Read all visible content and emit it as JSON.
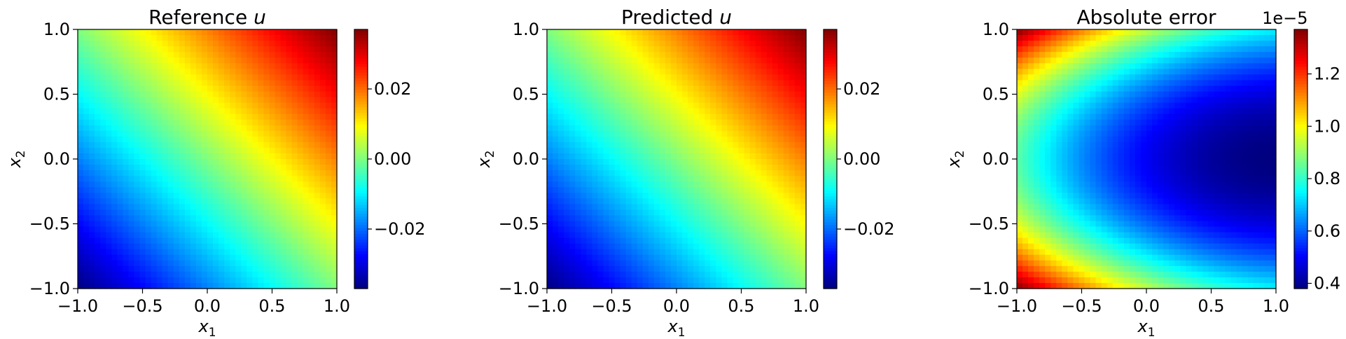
{
  "chart_data": [
    {
      "type": "heatmap",
      "title": "Reference",
      "title_var": "u",
      "xlabel": "x",
      "xlabel_sub": "1",
      "ylabel": "x",
      "ylabel_sub": "2",
      "xlim": [
        -1.0,
        1.0
      ],
      "ylim": [
        -1.0,
        1.0
      ],
      "xticks": [
        -1.0,
        -0.5,
        0.0,
        0.5,
        1.0
      ],
      "xtick_labels": [
        "−1.0",
        "−0.5",
        "0.0",
        "0.5",
        "1.0"
      ],
      "yticks": [
        -1.0,
        -0.5,
        0.0,
        0.5,
        1.0
      ],
      "ytick_labels": [
        "−1.0",
        "−0.5",
        "0.0",
        "0.5",
        "1.0"
      ],
      "colormap": "jet",
      "field": "linear",
      "corner_values": {
        "x-1_y-1": -0.037,
        "x1_y-1": 0.0,
        "x-1_y1": 0.0,
        "x1_y1": 0.037
      },
      "colorbar": {
        "range": [
          -0.037,
          0.037
        ],
        "ticks": [
          -0.02,
          0.0,
          0.02
        ],
        "tick_labels": [
          "−0.02",
          "0.00",
          "0.02"
        ],
        "offset_text": ""
      }
    },
    {
      "type": "heatmap",
      "title": "Predicted",
      "title_var": "u",
      "xlabel": "x",
      "xlabel_sub": "1",
      "ylabel": "x",
      "ylabel_sub": "2",
      "xlim": [
        -1.0,
        1.0
      ],
      "ylim": [
        -1.0,
        1.0
      ],
      "xticks": [
        -1.0,
        -0.5,
        0.0,
        0.5,
        1.0
      ],
      "xtick_labels": [
        "−1.0",
        "−0.5",
        "0.0",
        "0.5",
        "1.0"
      ],
      "yticks": [
        -1.0,
        -0.5,
        0.0,
        0.5,
        1.0
      ],
      "ytick_labels": [
        "−1.0",
        "−0.5",
        "0.0",
        "0.5",
        "1.0"
      ],
      "colormap": "jet",
      "field": "linear",
      "corner_values": {
        "x-1_y-1": -0.037,
        "x1_y-1": 0.0,
        "x-1_y1": 0.0,
        "x1_y1": 0.037
      },
      "colorbar": {
        "range": [
          -0.037,
          0.037
        ],
        "ticks": [
          -0.02,
          0.0,
          0.02
        ],
        "tick_labels": [
          "−0.02",
          "0.00",
          "0.02"
        ],
        "offset_text": ""
      }
    },
    {
      "type": "heatmap",
      "title": "Absolute error",
      "title_var": "",
      "xlabel": "x",
      "xlabel_sub": "1",
      "ylabel": "x",
      "ylabel_sub": "2",
      "xlim": [
        -1.0,
        1.0
      ],
      "ylim": [
        -1.0,
        1.0
      ],
      "xticks": [
        -1.0,
        -0.5,
        0.0,
        0.5,
        1.0
      ],
      "xtick_labels": [
        "−1.0",
        "−0.5",
        "0.0",
        "0.5",
        "1.0"
      ],
      "yticks": [
        -1.0,
        -0.5,
        0.0,
        0.5,
        1.0
      ],
      "ytick_labels": [
        "−1.0",
        "−0.5",
        "0.0",
        "0.5",
        "1.0"
      ],
      "colormap": "jet",
      "field": "error",
      "error_scale": 1e-05,
      "error_shape": {
        "min_at": [
          1.0,
          0.0
        ],
        "max_at_corners": [
          [
            -1.0,
            1.0
          ],
          [
            -1.0,
            -1.0
          ]
        ]
      },
      "colorbar": {
        "range": [
          0.38,
          1.37
        ],
        "ticks": [
          0.4,
          0.6,
          0.8,
          1.0,
          1.2
        ],
        "tick_labels": [
          "0.4",
          "0.6",
          "0.8",
          "1.0",
          "1.2"
        ],
        "offset_text": "1e−5"
      }
    }
  ]
}
